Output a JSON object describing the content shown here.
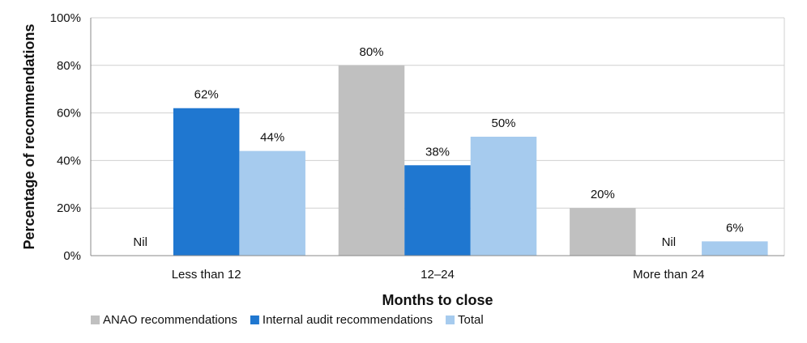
{
  "chart_data": {
    "type": "bar",
    "categories": [
      "Less than 12",
      "12–24",
      "More than 24"
    ],
    "series": [
      {
        "name": "ANAO recommendations",
        "values": [
          0,
          80,
          20
        ],
        "labels": [
          "Nil",
          "80%",
          "20%"
        ],
        "color": "#c0c0c0"
      },
      {
        "name": "Internal audit recommendations",
        "values": [
          62,
          38,
          0
        ],
        "labels": [
          "62%",
          "38%",
          "Nil"
        ],
        "color": "#1f77d0"
      },
      {
        "name": "Total",
        "values": [
          44,
          50,
          6
        ],
        "labels": [
          "44%",
          "50%",
          "6%"
        ],
        "color": "#a6cbee"
      }
    ],
    "xlabel": "Months to close",
    "ylabel": "Percentage of recommendations",
    "ylim": [
      0,
      100
    ],
    "yticks": [
      "0%",
      "20%",
      "40%",
      "60%",
      "80%",
      "100%"
    ],
    "grid": true,
    "legend_position": "bottom-left",
    "colors": {
      "gridline": "#d0d0d0",
      "axis": "#888888"
    }
  }
}
